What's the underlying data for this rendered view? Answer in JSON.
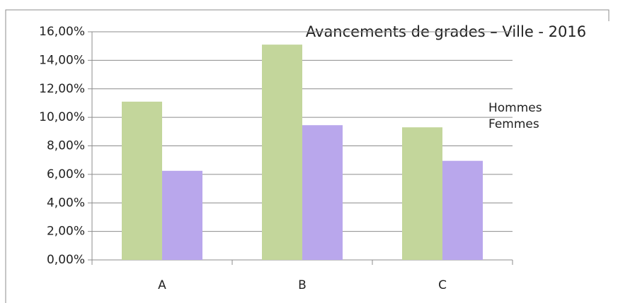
{
  "chart_data": {
    "type": "bar",
    "title": "Avancements de grades – Ville - 2016",
    "categories": [
      "A",
      "B",
      "C"
    ],
    "series": [
      {
        "name": "Hommes",
        "color": "#c3d69b",
        "values": [
          11.1,
          15.1,
          9.3
        ]
      },
      {
        "name": "Femmes",
        "color": "#b9a7ec",
        "values": [
          6.25,
          9.45,
          6.95
        ]
      }
    ],
    "ylim": [
      0,
      16
    ],
    "yticks": [
      {
        "value": 0,
        "label": "0,00%"
      },
      {
        "value": 2,
        "label": "2,00%"
      },
      {
        "value": 4,
        "label": "4,00%"
      },
      {
        "value": 6,
        "label": "6,00%"
      },
      {
        "value": 8,
        "label": "8,00%"
      },
      {
        "value": 10,
        "label": "10,00%"
      },
      {
        "value": 12,
        "label": "12,00%"
      },
      {
        "value": 14,
        "label": "14,00%"
      },
      {
        "value": 16,
        "label": "16,00%"
      }
    ],
    "grid": true,
    "legend": "right"
  }
}
